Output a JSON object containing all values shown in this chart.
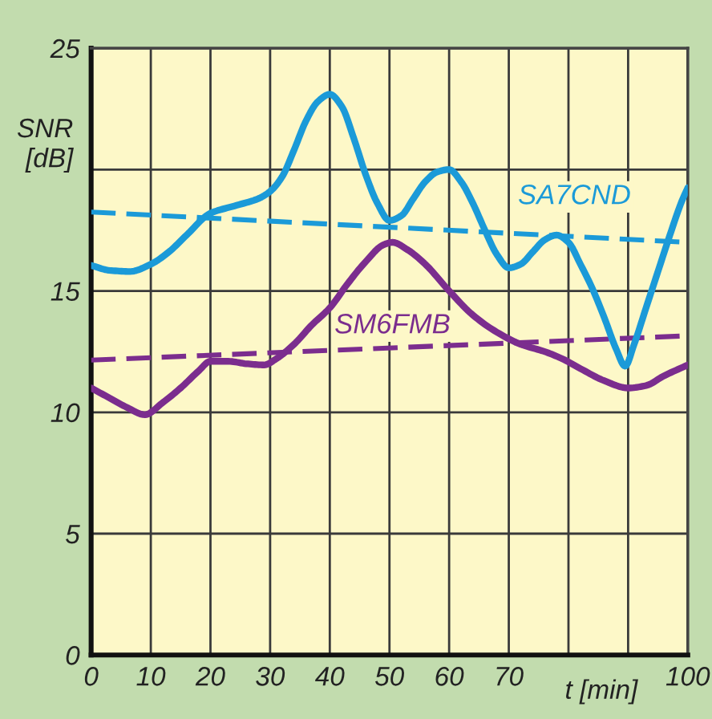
{
  "chart_data": {
    "type": "line",
    "xlabel": "t [min]",
    "ylabel": "SNR\n[dB]",
    "xlim": [
      0,
      100
    ],
    "ylim": [
      0,
      25
    ],
    "xticks": [
      0,
      10,
      20,
      30,
      40,
      50,
      60,
      70,
      {
        "value": 80,
        "label": null
      },
      {
        "value": 90,
        "label": null
      },
      100
    ],
    "yticks": [
      0,
      5,
      10,
      15,
      {
        "value": 20,
        "label": null
      },
      25
    ],
    "grid": true,
    "legend": false,
    "series": [
      {
        "line_style": "dashed",
        "color": "#1b9ad8",
        "x": [
          0,
          100
        ],
        "values": [
          18.25,
          17.0
        ]
      },
      {
        "line_style": "dashed",
        "color": "#7b2d8e",
        "x": [
          0,
          100
        ],
        "values": [
          12.15,
          13.15
        ]
      },
      {
        "name": "SA7CND",
        "color": "#1b9ad8",
        "x": [
          0,
          3,
          6.5,
          10,
          13,
          16,
          20,
          24,
          28,
          30,
          32,
          34,
          36,
          38,
          40,
          42,
          44,
          46,
          48,
          50,
          52,
          54,
          56,
          58,
          60,
          62,
          64,
          66,
          68,
          70,
          72,
          74,
          76,
          78,
          80,
          82,
          84,
          86,
          88,
          89.5,
          91,
          93,
          95,
          97,
          99,
          100
        ],
        "values": [
          16.05,
          15.85,
          15.8,
          16.1,
          16.6,
          17.3,
          18.2,
          18.5,
          18.8,
          19.1,
          19.7,
          20.8,
          22.0,
          22.8,
          23.1,
          22.6,
          21.3,
          19.8,
          18.6,
          17.9,
          18.1,
          18.8,
          19.5,
          19.9,
          20.0,
          19.5,
          18.6,
          17.5,
          16.5,
          15.95,
          16.1,
          16.6,
          17.1,
          17.3,
          17.0,
          16.1,
          15.1,
          13.9,
          12.6,
          11.9,
          12.8,
          14.3,
          15.8,
          17.3,
          18.7,
          19.25
        ]
      },
      {
        "name": "SM6FMB",
        "color": "#7b2d8e",
        "x": [
          0,
          3,
          6,
          9,
          12,
          15,
          18,
          20,
          23,
          26,
          29,
          31,
          34,
          37,
          40,
          43,
          46,
          49,
          50.5,
          53,
          56,
          60,
          64,
          68,
          72,
          76,
          79,
          82,
          86,
          90,
          93,
          96,
          100
        ],
        "values": [
          11.0,
          10.6,
          10.2,
          9.9,
          10.4,
          11.0,
          11.7,
          12.1,
          12.1,
          12.0,
          11.95,
          12.2,
          12.8,
          13.6,
          14.3,
          15.3,
          16.2,
          16.9,
          17.0,
          16.7,
          16.1,
          15.0,
          14.0,
          13.3,
          12.8,
          12.5,
          12.2,
          11.8,
          11.3,
          11.0,
          11.1,
          11.5,
          11.95
        ]
      }
    ]
  }
}
